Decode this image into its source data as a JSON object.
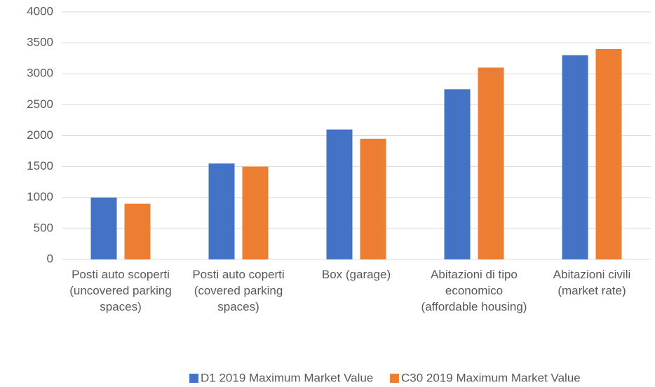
{
  "chart_data": {
    "type": "bar",
    "categories": [
      "Posti auto scoperti (uncovered parking spaces)",
      "Posti auto coperti (covered parking spaces)",
      "Box (garage)",
      "Abitazioni di tipo economico (affordable housing)",
      "Abitazioni civili (market rate)"
    ],
    "series": [
      {
        "name": "D1 2019 Maximum Market Value",
        "color": "#4472c4",
        "values": [
          1000,
          1550,
          2100,
          2750,
          3300
        ]
      },
      {
        "name": "C30 2019 Maximum Market Value",
        "color": "#ed7d31",
        "values": [
          900,
          1500,
          1950,
          3100,
          3400
        ]
      }
    ],
    "ylim": [
      0,
      4000
    ],
    "yticks": [
      0,
      500,
      1000,
      1500,
      2000,
      2500,
      3000,
      3500,
      4000
    ],
    "grid": true,
    "legend": "bottom"
  }
}
